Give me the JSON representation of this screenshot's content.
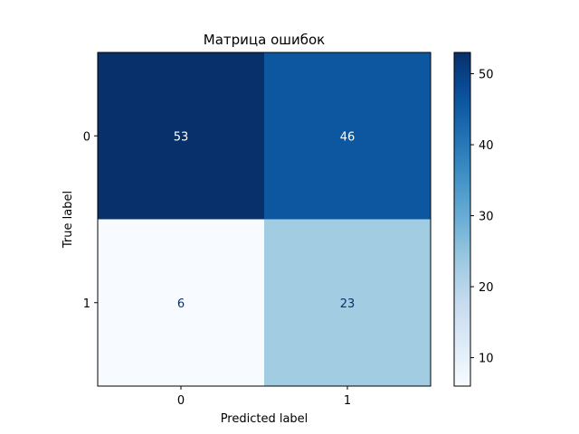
{
  "chart_data": {
    "type": "heatmap",
    "title": "Матрица ошибок",
    "xlabel": "Predicted label",
    "ylabel": "True label",
    "x_categories": [
      "0",
      "1"
    ],
    "y_categories": [
      "0",
      "1"
    ],
    "matrix": [
      [
        53,
        46
      ],
      [
        6,
        23
      ]
    ],
    "colormap": "Blues",
    "colorbar": {
      "range": [
        6,
        53
      ],
      "ticks": [
        10,
        20,
        30,
        40,
        50
      ],
      "location": "right"
    },
    "grid": false
  }
}
